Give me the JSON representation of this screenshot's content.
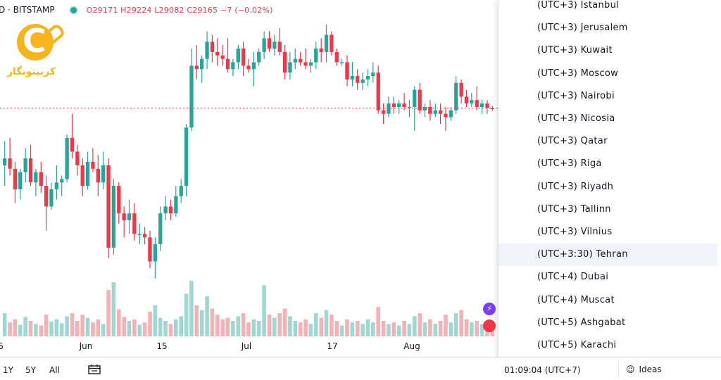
{
  "legend": {
    "symbol": "D · BITSTAMP",
    "ohlc": "O29171 H29224 L29082 C29165 −7 (−0.02%)"
  },
  "logo": {
    "text": "کریپتونگار"
  },
  "colors": {
    "up": "#26a69a",
    "down": "#f23645",
    "up_vol": "#9fd8d2",
    "down_vol": "#f5b2b6",
    "price_line": "#f23645",
    "accent": "#2962ff"
  },
  "chart_data": {
    "type": "candlestick",
    "x_tick_labels": [
      "5",
      "Jun",
      "15",
      "Jul",
      "17",
      "Aug"
    ],
    "current_price_line": 29165,
    "price_range": [
      23500,
      31700
    ],
    "candles": [
      {
        "o": 27500,
        "h": 28200,
        "l": 26900,
        "c": 27700,
        "v": 30
      },
      {
        "o": 27700,
        "h": 28300,
        "l": 27200,
        "c": 27400,
        "v": 18
      },
      {
        "o": 27400,
        "h": 27600,
        "l": 26400,
        "c": 26800,
        "v": 22
      },
      {
        "o": 26800,
        "h": 27400,
        "l": 26500,
        "c": 27300,
        "v": 15
      },
      {
        "o": 27300,
        "h": 28000,
        "l": 27000,
        "c": 27700,
        "v": 25
      },
      {
        "o": 27700,
        "h": 28100,
        "l": 26900,
        "c": 27000,
        "v": 20
      },
      {
        "o": 27000,
        "h": 27400,
        "l": 26600,
        "c": 27300,
        "v": 16
      },
      {
        "o": 27300,
        "h": 27600,
        "l": 26700,
        "c": 26900,
        "v": 14
      },
      {
        "o": 26900,
        "h": 27200,
        "l": 25600,
        "c": 26300,
        "v": 28
      },
      {
        "o": 26300,
        "h": 27000,
        "l": 26200,
        "c": 26800,
        "v": 19
      },
      {
        "o": 26800,
        "h": 27500,
        "l": 26500,
        "c": 27000,
        "v": 22
      },
      {
        "o": 27000,
        "h": 27200,
        "l": 26600,
        "c": 27100,
        "v": 17
      },
      {
        "o": 27100,
        "h": 28400,
        "l": 27000,
        "c": 28300,
        "v": 26
      },
      {
        "o": 28300,
        "h": 29000,
        "l": 27700,
        "c": 27900,
        "v": 30
      },
      {
        "o": 27900,
        "h": 28100,
        "l": 27200,
        "c": 27500,
        "v": 20
      },
      {
        "o": 27500,
        "h": 27700,
        "l": 26600,
        "c": 26900,
        "v": 28
      },
      {
        "o": 26900,
        "h": 27900,
        "l": 26800,
        "c": 27600,
        "v": 24
      },
      {
        "o": 27600,
        "h": 28000,
        "l": 27300,
        "c": 27400,
        "v": 18
      },
      {
        "o": 27400,
        "h": 27800,
        "l": 26600,
        "c": 27000,
        "v": 22
      },
      {
        "o": 27000,
        "h": 27900,
        "l": 26800,
        "c": 27500,
        "v": 16
      },
      {
        "o": 27500,
        "h": 27700,
        "l": 24800,
        "c": 25100,
        "v": 60
      },
      {
        "o": 25100,
        "h": 27100,
        "l": 24900,
        "c": 26900,
        "v": 70
      },
      {
        "o": 26900,
        "h": 27000,
        "l": 25800,
        "c": 26100,
        "v": 35
      },
      {
        "o": 26100,
        "h": 26300,
        "l": 25400,
        "c": 25900,
        "v": 25
      },
      {
        "o": 25900,
        "h": 26500,
        "l": 25500,
        "c": 26100,
        "v": 20
      },
      {
        "o": 26100,
        "h": 26400,
        "l": 25300,
        "c": 25500,
        "v": 22
      },
      {
        "o": 25500,
        "h": 25800,
        "l": 25200,
        "c": 25500,
        "v": 15
      },
      {
        "o": 25500,
        "h": 25700,
        "l": 25200,
        "c": 25400,
        "v": 18
      },
      {
        "o": 25400,
        "h": 25600,
        "l": 24500,
        "c": 24700,
        "v": 32
      },
      {
        "o": 24700,
        "h": 25400,
        "l": 24200,
        "c": 25200,
        "v": 40
      },
      {
        "o": 25200,
        "h": 26300,
        "l": 25000,
        "c": 26100,
        "v": 24
      },
      {
        "o": 26100,
        "h": 26600,
        "l": 25900,
        "c": 26300,
        "v": 20
      },
      {
        "o": 26300,
        "h": 26500,
        "l": 25900,
        "c": 26100,
        "v": 16
      },
      {
        "o": 26100,
        "h": 26900,
        "l": 26000,
        "c": 26600,
        "v": 22
      },
      {
        "o": 26600,
        "h": 27100,
        "l": 26400,
        "c": 26900,
        "v": 26
      },
      {
        "o": 26900,
        "h": 28700,
        "l": 26600,
        "c": 28600,
        "v": 55
      },
      {
        "o": 28600,
        "h": 30900,
        "l": 28500,
        "c": 30400,
        "v": 72
      },
      {
        "o": 30400,
        "h": 31000,
        "l": 30000,
        "c": 30300,
        "v": 40
      },
      {
        "o": 30300,
        "h": 30700,
        "l": 29900,
        "c": 30600,
        "v": 34
      },
      {
        "o": 30600,
        "h": 31400,
        "l": 30300,
        "c": 31100,
        "v": 52
      },
      {
        "o": 31100,
        "h": 31300,
        "l": 30500,
        "c": 30800,
        "v": 36
      },
      {
        "o": 30800,
        "h": 31200,
        "l": 30400,
        "c": 30700,
        "v": 28
      },
      {
        "o": 30700,
        "h": 31000,
        "l": 30400,
        "c": 30600,
        "v": 22
      },
      {
        "o": 30600,
        "h": 31200,
        "l": 30200,
        "c": 30300,
        "v": 24
      },
      {
        "o": 30300,
        "h": 30600,
        "l": 30100,
        "c": 30500,
        "v": 20
      },
      {
        "o": 30500,
        "h": 31000,
        "l": 30300,
        "c": 30900,
        "v": 26
      },
      {
        "o": 30900,
        "h": 31100,
        "l": 30100,
        "c": 30400,
        "v": 30
      },
      {
        "o": 30400,
        "h": 30600,
        "l": 30200,
        "c": 30300,
        "v": 18
      },
      {
        "o": 30300,
        "h": 30800,
        "l": 29800,
        "c": 30500,
        "v": 22
      },
      {
        "o": 30500,
        "h": 30900,
        "l": 30400,
        "c": 30800,
        "v": 20
      },
      {
        "o": 30800,
        "h": 31400,
        "l": 30600,
        "c": 31200,
        "v": 66
      },
      {
        "o": 31200,
        "h": 31400,
        "l": 30800,
        "c": 30900,
        "v": 28
      },
      {
        "o": 30900,
        "h": 31300,
        "l": 30700,
        "c": 31100,
        "v": 24
      },
      {
        "o": 31100,
        "h": 31500,
        "l": 30700,
        "c": 30800,
        "v": 30
      },
      {
        "o": 30800,
        "h": 31000,
        "l": 30000,
        "c": 30200,
        "v": 36
      },
      {
        "o": 30200,
        "h": 30800,
        "l": 30000,
        "c": 30500,
        "v": 26
      },
      {
        "o": 30500,
        "h": 30900,
        "l": 30300,
        "c": 30600,
        "v": 20
      },
      {
        "o": 30600,
        "h": 30800,
        "l": 30400,
        "c": 30500,
        "v": 18
      },
      {
        "o": 30500,
        "h": 30900,
        "l": 30300,
        "c": 30400,
        "v": 22
      },
      {
        "o": 30400,
        "h": 30600,
        "l": 30200,
        "c": 30500,
        "v": 16
      },
      {
        "o": 30500,
        "h": 31100,
        "l": 30300,
        "c": 30900,
        "v": 30
      },
      {
        "o": 30900,
        "h": 31200,
        "l": 30500,
        "c": 30800,
        "v": 24
      },
      {
        "o": 30800,
        "h": 31600,
        "l": 30500,
        "c": 31300,
        "v": 34
      },
      {
        "o": 31300,
        "h": 31400,
        "l": 30700,
        "c": 30800,
        "v": 28
      },
      {
        "o": 30800,
        "h": 30900,
        "l": 30400,
        "c": 30500,
        "v": 20
      },
      {
        "o": 30500,
        "h": 30600,
        "l": 30400,
        "c": 30500,
        "v": 14
      },
      {
        "o": 30500,
        "h": 30700,
        "l": 29800,
        "c": 30000,
        "v": 22
      },
      {
        "o": 30000,
        "h": 30500,
        "l": 29800,
        "c": 30100,
        "v": 18
      },
      {
        "o": 30100,
        "h": 30300,
        "l": 29700,
        "c": 29900,
        "v": 20
      },
      {
        "o": 29900,
        "h": 30200,
        "l": 29700,
        "c": 30000,
        "v": 16
      },
      {
        "o": 30000,
        "h": 30300,
        "l": 29800,
        "c": 30100,
        "v": 22
      },
      {
        "o": 30100,
        "h": 30500,
        "l": 29900,
        "c": 30200,
        "v": 18
      },
      {
        "o": 30200,
        "h": 30400,
        "l": 29000,
        "c": 29100,
        "v": 38
      },
      {
        "o": 29100,
        "h": 29300,
        "l": 28700,
        "c": 29000,
        "v": 20
      },
      {
        "o": 29000,
        "h": 29500,
        "l": 28900,
        "c": 29300,
        "v": 16
      },
      {
        "o": 29300,
        "h": 29500,
        "l": 29000,
        "c": 29200,
        "v": 18
      },
      {
        "o": 29200,
        "h": 29400,
        "l": 29000,
        "c": 29300,
        "v": 14
      },
      {
        "o": 29300,
        "h": 29600,
        "l": 29100,
        "c": 29200,
        "v": 20
      },
      {
        "o": 29200,
        "h": 29400,
        "l": 28900,
        "c": 29200,
        "v": 16
      },
      {
        "o": 29200,
        "h": 29800,
        "l": 28500,
        "c": 29700,
        "v": 26
      },
      {
        "o": 29700,
        "h": 29900,
        "l": 29000,
        "c": 29100,
        "v": 30
      },
      {
        "o": 29100,
        "h": 29300,
        "l": 28900,
        "c": 29200,
        "v": 18
      },
      {
        "o": 29200,
        "h": 29400,
        "l": 28800,
        "c": 29000,
        "v": 22
      },
      {
        "o": 29000,
        "h": 29300,
        "l": 28900,
        "c": 29100,
        "v": 16
      },
      {
        "o": 29100,
        "h": 29300,
        "l": 28700,
        "c": 29000,
        "v": 20
      },
      {
        "o": 29000,
        "h": 29200,
        "l": 28500,
        "c": 28900,
        "v": 28
      },
      {
        "o": 28900,
        "h": 29200,
        "l": 28800,
        "c": 29100,
        "v": 18
      },
      {
        "o": 29100,
        "h": 30100,
        "l": 29000,
        "c": 29900,
        "v": 30
      },
      {
        "o": 29900,
        "h": 30000,
        "l": 29300,
        "c": 29500,
        "v": 34
      },
      {
        "o": 29500,
        "h": 29700,
        "l": 29200,
        "c": 29300,
        "v": 22
      },
      {
        "o": 29300,
        "h": 29600,
        "l": 29200,
        "c": 29400,
        "v": 18
      },
      {
        "o": 29400,
        "h": 29800,
        "l": 29100,
        "c": 29200,
        "v": 20
      },
      {
        "o": 29200,
        "h": 29400,
        "l": 29000,
        "c": 29300,
        "v": 16
      },
      {
        "o": 29300,
        "h": 29400,
        "l": 29000,
        "c": 29171,
        "v": 14
      },
      {
        "o": 29171,
        "h": 29224,
        "l": 29082,
        "c": 29165,
        "v": 10
      }
    ]
  },
  "timezone_menu": {
    "items": [
      "(UTC+3) Istanbul",
      "(UTC+3) Jerusalem",
      "(UTC+3) Kuwait",
      "(UTC+3) Moscow",
      "(UTC+3) Nairobi",
      "(UTC+3) Nicosia",
      "(UTC+3) Qatar",
      "(UTC+3) Riga",
      "(UTC+3) Riyadh",
      "(UTC+3) Tallinn",
      "(UTC+3) Vilnius",
      "(UTC+3:30) Tehran",
      "(UTC+4) Dubai",
      "(UTC+4) Muscat",
      "(UTC+5) Ashgabat",
      "(UTC+5) Karachi"
    ],
    "selected_index": 11
  },
  "bottom_bar": {
    "timeframes": [
      "1Y",
      "5Y",
      "All"
    ],
    "clock": "01:09:04 (UTC+7)",
    "ideas_label": "Ideas"
  }
}
